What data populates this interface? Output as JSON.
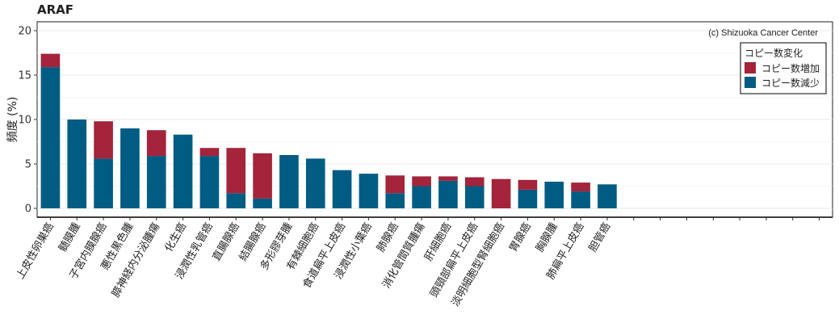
{
  "chart_data": {
    "type": "bar",
    "stacked": true,
    "title": "ARAF",
    "ylabel": "頻度 (%)",
    "ylim": [
      0,
      20
    ],
    "yticks": [
      0,
      5,
      10,
      15,
      20
    ],
    "grid": true,
    "credit": "(c) Shizuoka Cancer Center",
    "legend": {
      "title": "コピー数変化",
      "position": "top-right",
      "entries": [
        {
          "label": "コピー数増加",
          "color": "#a3243b"
        },
        {
          "label": "コピー数減少",
          "color": "#015c84"
        }
      ]
    },
    "categories": [
      "上皮性卵巣癌",
      "髄膜腫",
      "子宮内膜腺癌",
      "悪性黒色腫",
      "膵神経内分泌腫瘍",
      "化生癌",
      "浸潤性乳管癌",
      "直腸腺癌",
      "結腸腺癌",
      "多形膠芽腫",
      "有棘細胞癌",
      "食道扁平上皮癌",
      "浸潤性小葉癌",
      "肺腺癌",
      "消化管間質腫瘍",
      "肝細胞癌",
      "頭頸部扁平上皮癌",
      "淡明細胞型腎細胞癌",
      "胃腺癌",
      "胸腺腫",
      "肺扁平上皮癌",
      "胆管癌"
    ],
    "empty_slots": 8,
    "series": [
      {
        "name": "コピー数減少",
        "color": "#015c84",
        "values": [
          15.9,
          10.0,
          5.6,
          9.0,
          5.9,
          8.3,
          5.9,
          1.7,
          1.1,
          6.0,
          5.6,
          4.3,
          3.9,
          1.7,
          2.5,
          3.1,
          2.5,
          0.0,
          2.1,
          3.0,
          1.9,
          2.7
        ]
      },
      {
        "name": "コピー数増加",
        "color": "#a3243b",
        "values": [
          1.5,
          0.0,
          4.2,
          0.0,
          2.9,
          0.0,
          0.9,
          5.1,
          5.1,
          0.0,
          0.0,
          0.0,
          0.0,
          2.0,
          1.1,
          0.5,
          1.0,
          3.3,
          1.1,
          0.0,
          1.0,
          0.0
        ]
      }
    ]
  }
}
